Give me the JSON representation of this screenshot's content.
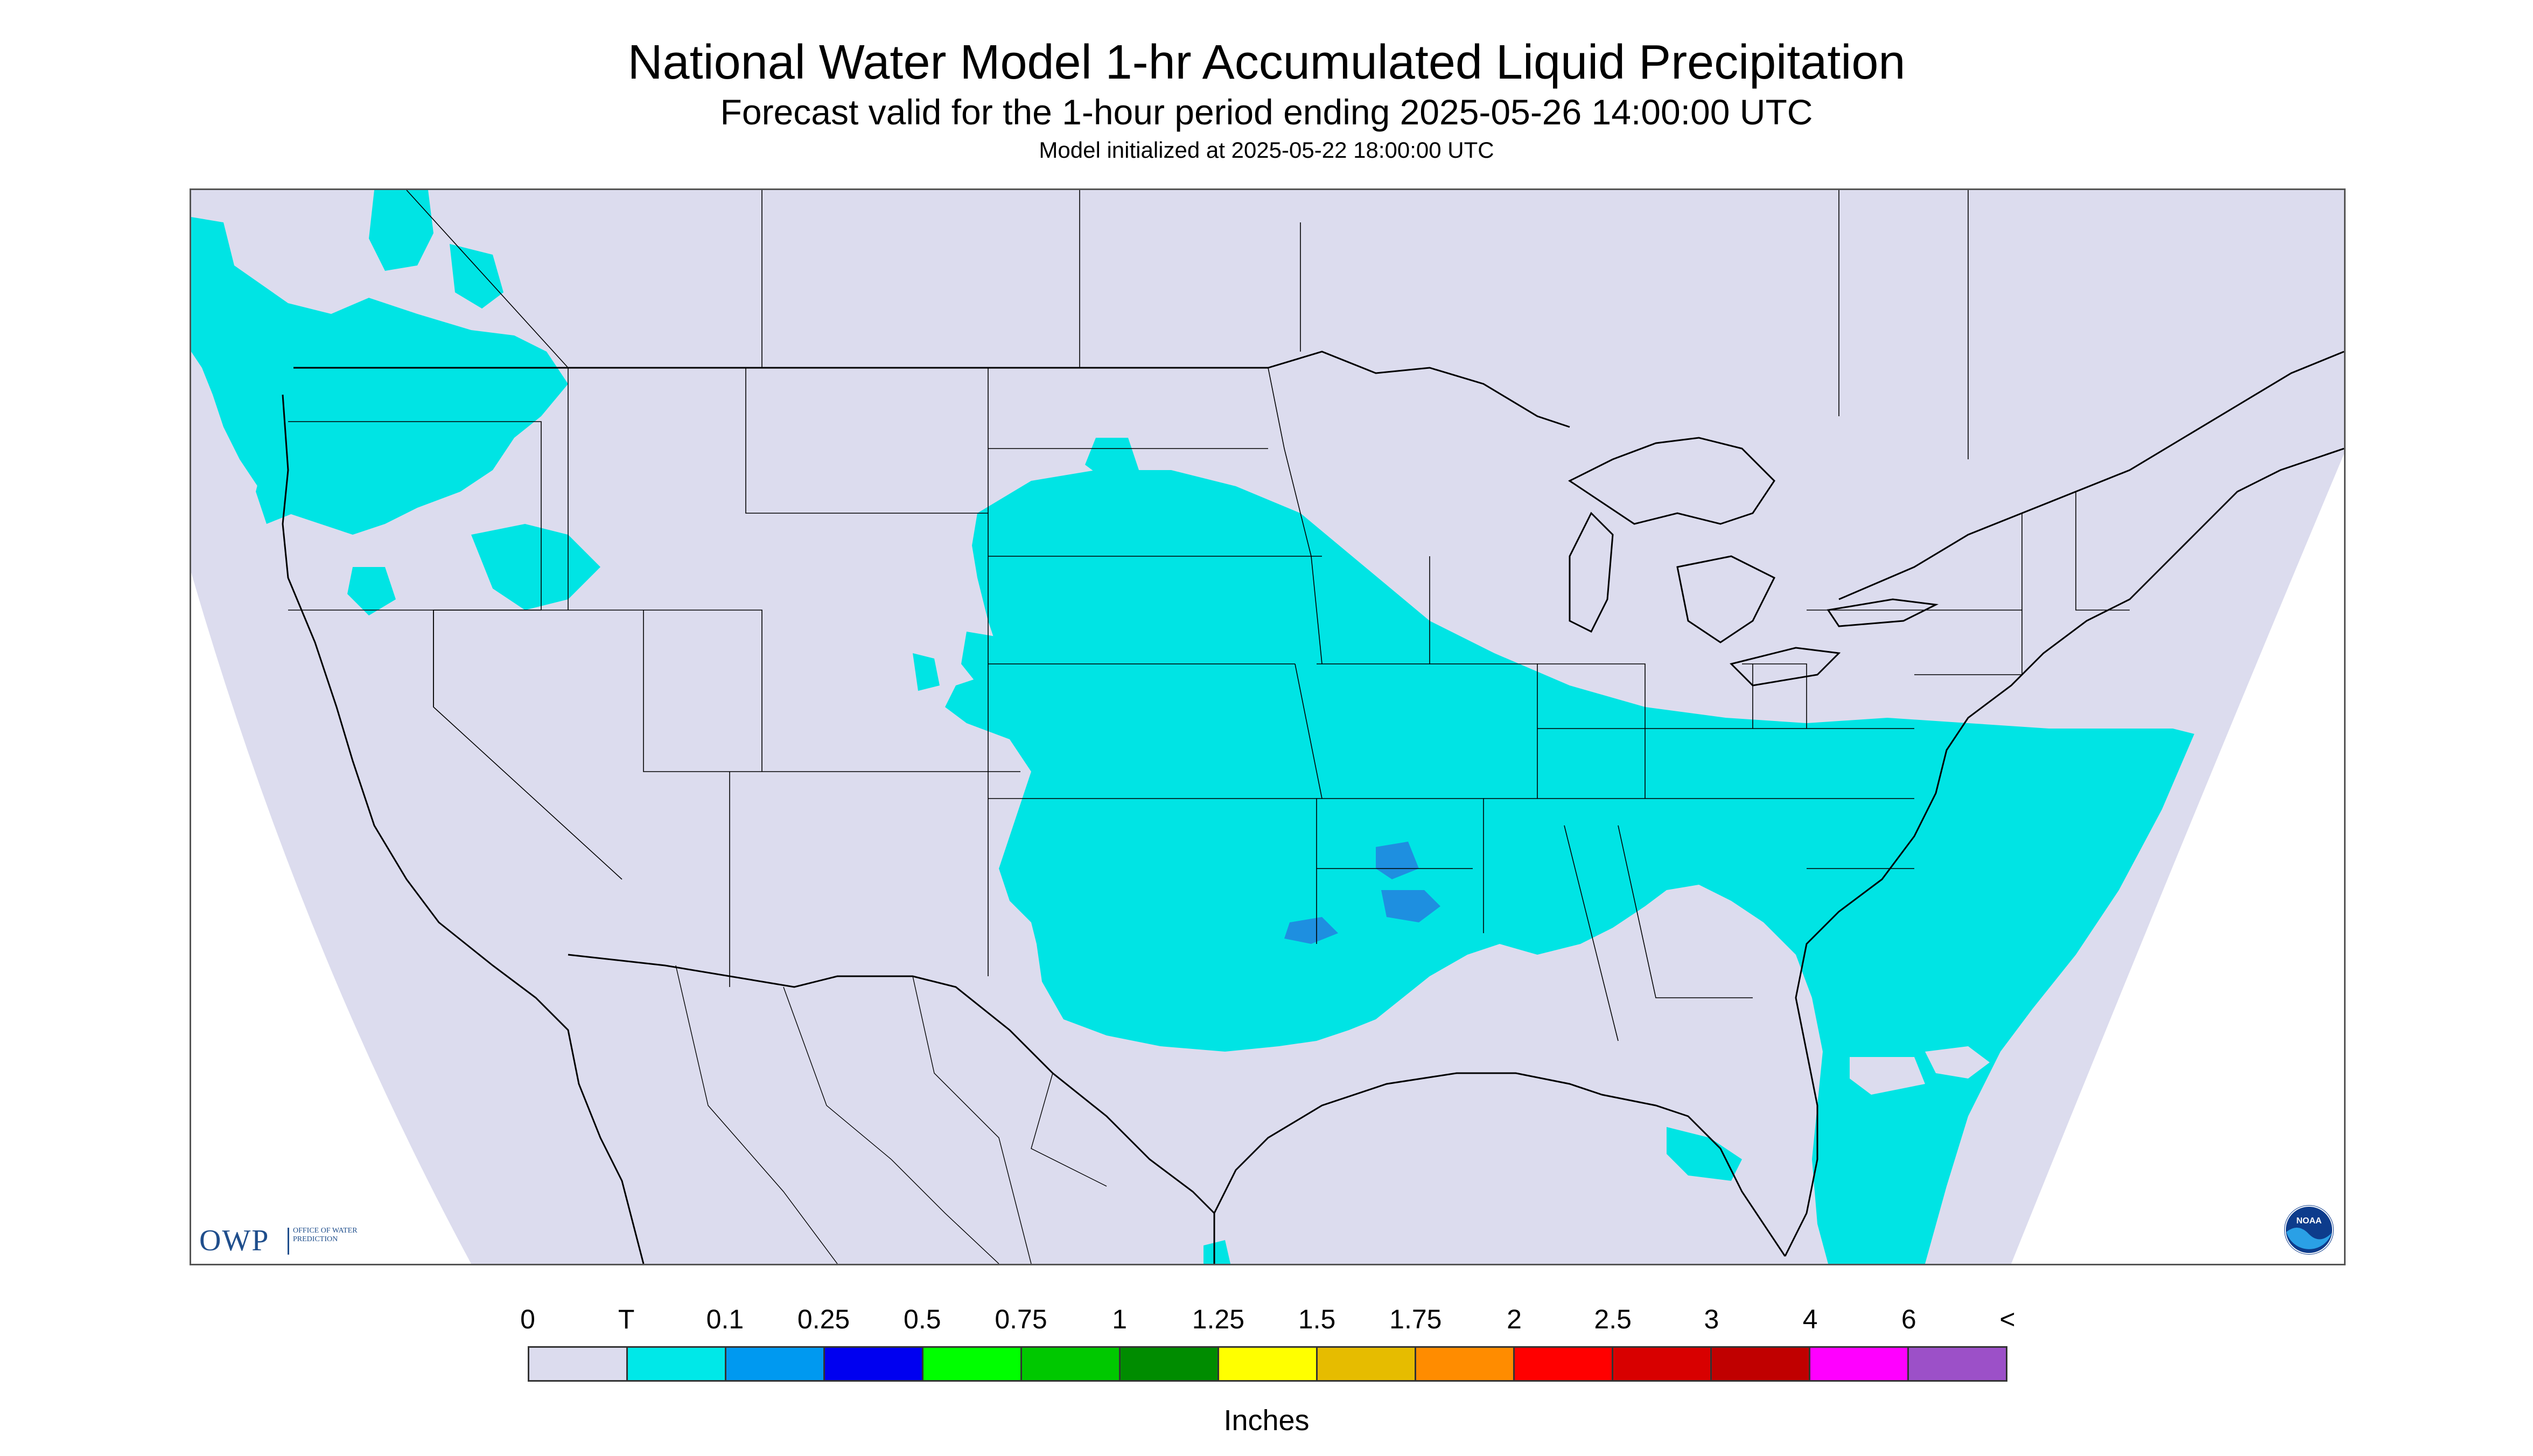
{
  "header": {
    "title": "National Water Model 1-hr Accumulated Liquid Precipitation",
    "subtitle": "Forecast valid for the 1-hour period ending 2025-05-26 14:00:00 UTC",
    "init_line": "Model initialized at 2025-05-22 18:00:00 UTC"
  },
  "map": {
    "region": "Contiguous United States",
    "projection_fill_color": "#dcdcee",
    "outside_color": "#ffffff",
    "boundary_color": "#000000",
    "precip_regions": [
      {
        "name": "Pacific Northwest",
        "category": "T",
        "color": "#00e4e4"
      },
      {
        "name": "Central Plains to Mid-Atlantic",
        "category": "T",
        "color": "#00e4e4"
      },
      {
        "name": "Southern Plains / Arklatex",
        "category": "T",
        "color": "#00e4e4"
      },
      {
        "name": "Atlantic Offshore",
        "category": "T",
        "color": "#00e4e4"
      },
      {
        "name": "Arkansas / Oklahoma pockets",
        "category": "0.1",
        "color": "#1e8fe0"
      }
    ]
  },
  "logos": {
    "owp_mark": "OWP",
    "owp_text": "OFFICE OF WATER PREDICTION",
    "noaa_text": "NOAA",
    "noaa_icon": "noaa-logo-icon"
  },
  "legend": {
    "labels": [
      "0",
      "T",
      "0.1",
      "0.25",
      "0.5",
      "0.75",
      "1",
      "1.25",
      "1.5",
      "1.75",
      "2",
      "2.5",
      "3",
      "4",
      "6",
      "<"
    ],
    "colors": [
      "#dcdcee",
      "#00e8e8",
      "#0099f0",
      "#0000f0",
      "#00ff00",
      "#00c800",
      "#008c00",
      "#ffff00",
      "#e6bc00",
      "#ff8c00",
      "#ff0000",
      "#d80000",
      "#c00000",
      "#ff00ff",
      "#9c50c8"
    ],
    "units": "Inches"
  }
}
